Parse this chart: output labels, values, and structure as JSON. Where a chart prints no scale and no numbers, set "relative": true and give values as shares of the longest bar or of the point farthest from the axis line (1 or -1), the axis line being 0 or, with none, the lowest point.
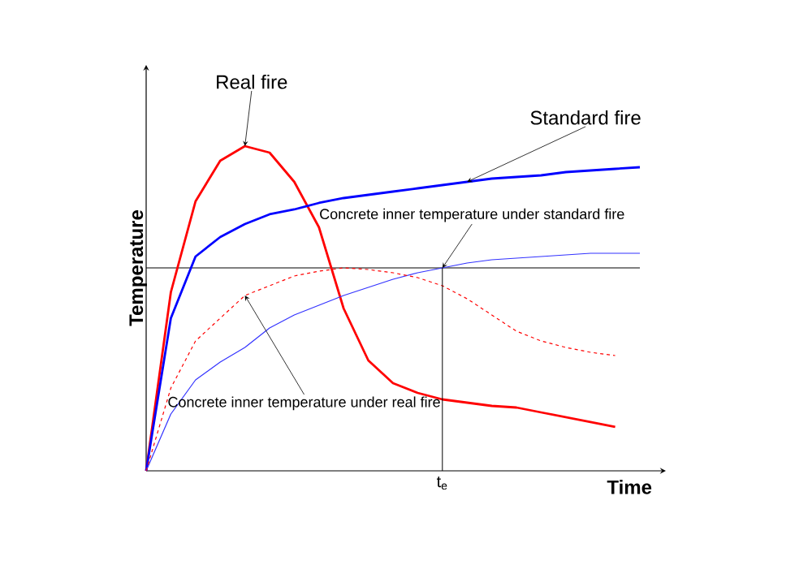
{
  "chart_data": {
    "type": "line",
    "relative": true,
    "xlabel": "Time",
    "ylabel": "Temperature",
    "categories": [
      null,
      null,
      null,
      null,
      null,
      null,
      null,
      null,
      null,
      null,
      null,
      null,
      null,
      null,
      null,
      null,
      null,
      null,
      null,
      null,
      null
    ],
    "annotations": [
      "t$_{e}$"
    ],
    "series": [
      {
        "name": "Real fire",
        "color": "#ff0000",
        "values": [
          0,
          0.55,
          0.83,
          0.955,
          1,
          0.98,
          0.89,
          0.75,
          0.5,
          0.34,
          0.27,
          0.24,
          0.22,
          0.21,
          0.2,
          0.195,
          0.18,
          0.165,
          0.15,
          0.135,
          null
        ]
      },
      {
        "name": "Standard fire",
        "color": "#0000ff",
        "values": [
          0,
          0.47,
          0.66,
          0.72,
          0.76,
          0.79,
          0.805,
          0.825,
          0.84,
          0.85,
          0.86,
          0.87,
          0.88,
          0.89,
          0.9,
          0.905,
          0.91,
          0.92,
          0.925,
          0.93,
          0.935
        ]
      },
      {
        "name": "Concrete inner temperature under standard fire",
        "color": "#3333ff",
        "values": [
          0,
          0.175,
          0.28,
          0.335,
          0.38,
          0.44,
          0.48,
          0.51,
          0.54,
          0.565,
          0.59,
          0.61,
          0.625,
          0.64,
          0.65,
          0.655,
          0.66,
          0.665,
          0.67,
          0.67,
          0.67
        ]
      },
      {
        "name": "Concrete inner temperature under real fire",
        "color": "#ff0000",
        "line_style": "dashed",
        "values": [
          0,
          0.255,
          0.4,
          0.47,
          0.54,
          0.57,
          0.6,
          0.615,
          0.625,
          0.62,
          0.61,
          0.595,
          0.57,
          0.53,
          0.48,
          0.43,
          0.4,
          0.38,
          0.365,
          0.355,
          null
        ]
      }
    ],
    "ref_lines": [
      {
        "axis": "y",
        "value": 0.625,
        "color": "#000000"
      }
    ]
  }
}
